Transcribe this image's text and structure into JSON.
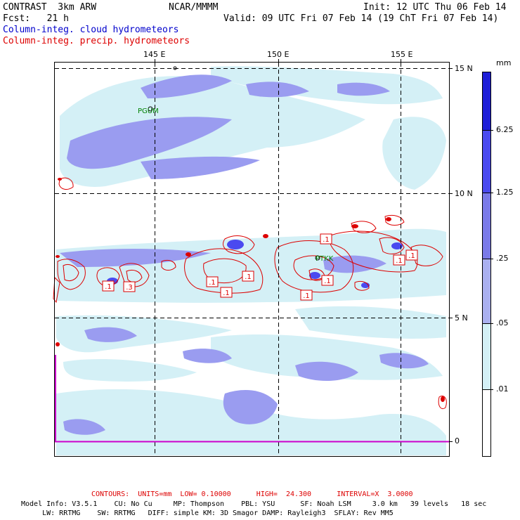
{
  "header": {
    "model": "CONTRAST  3km ARW",
    "org": "NCAR/MMMM",
    "init": "Init: 12 UTC Thu 06 Feb 14",
    "fcst": "Fcst:   21 h",
    "valid": "Valid: 09 UTC Fri 07 Feb 14 (19 ChT Fri 07 Feb 14)"
  },
  "legend": {
    "cloud": "Column-integ. cloud hydrometeors",
    "precip": "Column-integ. precip. hydrometeors",
    "cloud_color": "#0000cc",
    "precip_color": "#dd0000"
  },
  "map": {
    "lon_labels": [
      "145 E",
      "150 E",
      "155 E"
    ],
    "lat_labels": [
      "15 N",
      "10 N",
      "5 N",
      "0"
    ],
    "stations": [
      "PGUM",
      "PTKK"
    ],
    "contour_labels": [
      ".1",
      ".3",
      ".1",
      ".1",
      ".1",
      ".1",
      ".1",
      ".1",
      ".1",
      ".1"
    ]
  },
  "colorbar": {
    "unit": "mm",
    "levels": [
      "6.25",
      "1.25",
      ".25",
      ".05",
      ".01"
    ],
    "colors": [
      "#1f1fd8",
      "#4a4af0",
      "#7a7ae8",
      "#aab0f0",
      "#d4f0f6",
      "#ffffff"
    ]
  },
  "footer": {
    "contours": "CONTOURS:  UNITS=mm  LOW= 0.10000      HIGH=  24.300      INTERVAL=X  3.0000",
    "model_line1": "Model Info: V3.5.1    CU: No Cu     MP: Thompson    PBL: YSU      SF: Noah LSM     3.0 km   39 levels   18 sec",
    "model_line2": "     LW: RRTMG    SW: RRTMG   DIFF: simple KM: 3D Smagor DAMP: Rayleigh3  SFLAY: Rev MM5"
  }
}
